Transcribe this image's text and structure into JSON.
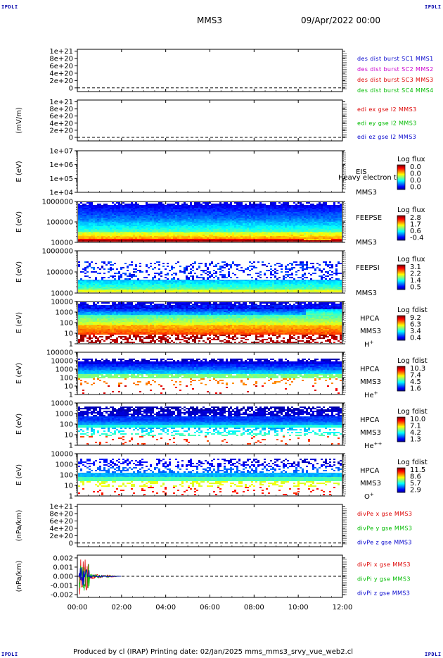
{
  "header": {
    "mission": "MMS3",
    "date": "09/Apr/2022 00:00",
    "corner_label": "IPDLI"
  },
  "footer": {
    "text": "Produced by cl (IRAP)   Printing date: 02/Jan/2025   mms_mms3_srvy_vue_web2.cl"
  },
  "colors": {
    "dashed_zero": "#000000",
    "red": "#dd0000",
    "green": "#00bb00",
    "blue": "#0000cc",
    "magenta": "#cc00cc"
  },
  "chart_data": [
    {
      "type": "line",
      "ylabel": "",
      "ytick_labels": [
        "1e+21",
        "8e+20",
        "6e+20",
        "4e+20",
        "2e+20",
        "0"
      ],
      "yticks": [
        1e+21,
        8e+20,
        6e+20,
        4e+20,
        2e+20,
        0
      ],
      "ylim": [
        -1e+20,
        1.05e+21
      ],
      "zero_line": true,
      "legend": [
        {
          "text": "des dist burst SC1 MMS1",
          "color": "#0000cc"
        },
        {
          "text": "des dist burst SC2 MMS2",
          "color": "#cc00cc"
        },
        {
          "text": "des dist burst SC3 MMS3",
          "color": "#dd0000"
        },
        {
          "text": "des dist burst SC4 MMS4",
          "color": "#00bb00"
        }
      ]
    },
    {
      "type": "line",
      "ylabel": "(mV/m)",
      "ytick_labels": [
        "1e+21",
        "8e+20",
        "6e+20",
        "4e+20",
        "2e+20",
        "0"
      ],
      "yticks": [
        1e+21,
        8e+20,
        6e+20,
        4e+20,
        2e+20,
        0
      ],
      "ylim": [
        -1e+20,
        1.05e+21
      ],
      "zero_line": true,
      "legend": [
        {
          "text": "edi ex gse l2 MMS3",
          "color": "#dd0000"
        },
        {
          "text": "edi ey gse l2 MMS3",
          "color": "#00bb00"
        },
        {
          "text": "edi ez gse l2 MMS3",
          "color": "#0000cc"
        }
      ]
    },
    {
      "type": "heatmap",
      "ylabel": "E (eV)",
      "ytick_labels": [
        "1e+07",
        "1e+06",
        "1e+05",
        "1e+04"
      ],
      "log_ylim": [
        4,
        7
      ],
      "empty": true,
      "instrument": "EIS",
      "overlap_text": "Heavy electron to",
      "spacecraft": "MMS3",
      "colorbar_title": "Log flux",
      "colorbar_labels": [
        "0.0",
        "0.0",
        "0.0",
        "0.0"
      ]
    },
    {
      "type": "heatmap",
      "ylabel": "E (eV)",
      "ytick_labels": [
        "1000000",
        "100000",
        "10000"
      ],
      "log_ylim": [
        4,
        6
      ],
      "band": "feepse",
      "instrument": "FEEPSE",
      "spacecraft": "MMS3",
      "colorbar_title": "Log flux",
      "colorbar_labels": [
        "2.8",
        "1.7",
        "0.6",
        "-0.4"
      ]
    },
    {
      "type": "heatmap",
      "ylabel": "E (eV)",
      "ytick_labels": [
        "1000000",
        "100000",
        "10000"
      ],
      "log_ylim": [
        4,
        6
      ],
      "band": "feepsi",
      "instrument": "FEEPSI",
      "spacecraft": "MMS3",
      "colorbar_title": "Log flux",
      "colorbar_labels": [
        "3.1",
        "2.2",
        "1.4",
        "0.5"
      ]
    },
    {
      "type": "heatmap",
      "ylabel": "E (eV)",
      "ytick_labels": [
        "10000",
        "1000",
        "100",
        "10",
        "1"
      ],
      "log_ylim": [
        0,
        4.2
      ],
      "band": "hpca_h",
      "instrument": "HPCA",
      "spacecraft": "MMS3",
      "species": "H",
      "species_sup": "+",
      "colorbar_title": "Log fdist",
      "colorbar_labels": [
        "9.2",
        "6.3",
        "3.4",
        "0.4"
      ]
    },
    {
      "type": "heatmap",
      "ylabel": "E (eV)",
      "ytick_labels": [
        "100000",
        "10000",
        "1000",
        "100",
        "10",
        "1"
      ],
      "log_ylim": [
        0,
        5
      ],
      "band": "hpca_he",
      "instrument": "HPCA",
      "spacecraft": "MMS3",
      "species": "He",
      "species_sup": "+",
      "colorbar_title": "Log fdist",
      "colorbar_labels": [
        "10.3",
        "7.4",
        "4.5",
        "1.6"
      ]
    },
    {
      "type": "heatmap",
      "ylabel": "E (eV)",
      "ytick_labels": [
        "10000",
        "1000",
        "100",
        "10",
        "1"
      ],
      "log_ylim": [
        0,
        4.2
      ],
      "band": "hpca_hepp",
      "instrument": "HPCA",
      "spacecraft": "MMS3",
      "species": "He",
      "species_sup": "++",
      "colorbar_title": "Log fdist",
      "colorbar_labels": [
        "10.0",
        "7.1",
        "4.2",
        "1.3"
      ]
    },
    {
      "type": "heatmap",
      "ylabel": "E (eV)",
      "ytick_labels": [
        "10000",
        "1000",
        "100",
        "10",
        "1"
      ],
      "log_ylim": [
        0,
        4.2
      ],
      "band": "hpca_o",
      "instrument": "HPCA",
      "spacecraft": "MMS3",
      "species": "O",
      "species_sup": "+",
      "colorbar_title": "Log fdist",
      "colorbar_labels": [
        "11.5",
        "8.6",
        "5.7",
        "2.9"
      ]
    },
    {
      "type": "line",
      "ylabel": "(nPa/km)",
      "ytick_labels": [
        "1e+21",
        "8e+20",
        "6e+20",
        "4e+20",
        "2e+20",
        "0"
      ],
      "yticks": [
        1e+21,
        8e+20,
        6e+20,
        4e+20,
        2e+20,
        0
      ],
      "ylim": [
        -1e+20,
        1.05e+21
      ],
      "zero_line": true,
      "legend": [
        {
          "text": "divPe x gse MMS3",
          "color": "#dd0000"
        },
        {
          "text": "divPe y gse MMS3",
          "color": "#00bb00"
        },
        {
          "text": "divPe z gse MMS3",
          "color": "#0000cc"
        }
      ]
    },
    {
      "type": "line",
      "ylabel": "(nPa/km)",
      "ytick_labels": [
        "0.002",
        "0.001",
        "0.000",
        "-0.001",
        "-0.002"
      ],
      "yticks": [
        0.002,
        0.001,
        0,
        -0.001,
        -0.002
      ],
      "ylim": [
        -0.0023,
        0.0023
      ],
      "zero_line": true,
      "burst_hours": [
        0,
        2
      ],
      "legend": [
        {
          "text": "divPi x gse MMS3",
          "color": "#dd0000"
        },
        {
          "text": "divPi y gse MMS3",
          "color": "#00bb00"
        },
        {
          "text": "divPi z gse MMS3",
          "color": "#0000cc"
        }
      ]
    }
  ],
  "x_axis": {
    "tick_labels": [
      "00:00",
      "02:00",
      "04:00",
      "06:00",
      "08:00",
      "10:00",
      "12:00"
    ],
    "hours": [
      0,
      2,
      4,
      6,
      8,
      10,
      12
    ],
    "xlim_hours": [
      0,
      12
    ]
  }
}
